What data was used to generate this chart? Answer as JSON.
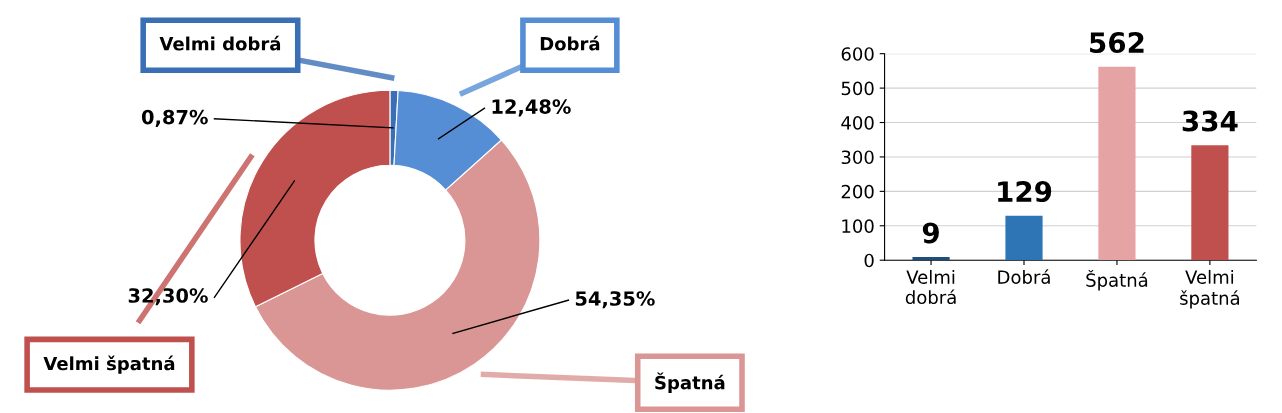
{
  "chart_data": [
    {
      "type": "donut",
      "categories": [
        "Velmi dobrá",
        "Dobrá",
        "Špatná",
        "Velmi špatná"
      ],
      "values": [
        0.87,
        12.48,
        54.35,
        32.3
      ],
      "value_labels": [
        "0,87%",
        "12,48%",
        "54,35%",
        "32,30%"
      ],
      "colors": [
        "#3a6fb5",
        "#558ed5",
        "#d99694",
        "#c0504d"
      ]
    },
    {
      "type": "bar",
      "categories": [
        "Velmi dobrá",
        "Dobrá",
        "Špatná",
        "Velmi špatná"
      ],
      "values": [
        9,
        129,
        562,
        334
      ],
      "colors": [
        "#1f4e79",
        "#2e75b6",
        "#e6a3a3",
        "#c0504d"
      ],
      "ylim": [
        0,
        600
      ],
      "yticks": [
        0,
        100,
        200,
        300,
        400,
        500,
        600
      ],
      "grid": "y",
      "data_labels": true
    }
  ]
}
